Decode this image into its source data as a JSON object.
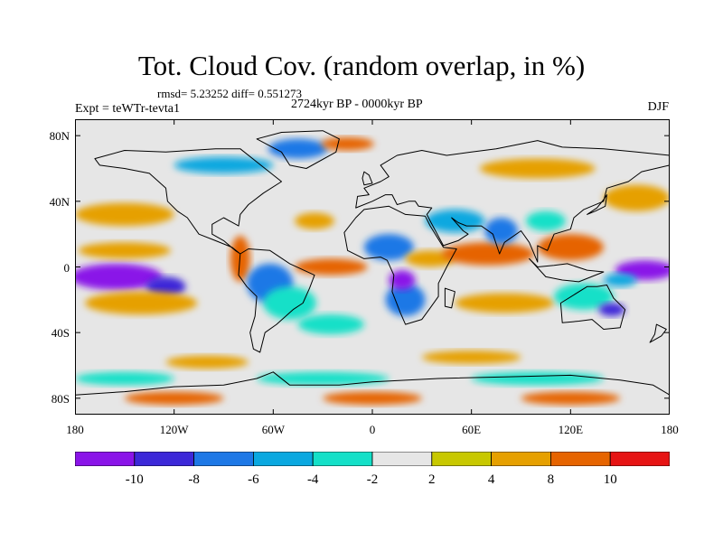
{
  "header": {
    "title": "Tot. Cloud Cov. (random overlap, in %)",
    "stats": "rmsd= 5.23252 diff= 0.551273",
    "experiment": "Expt = teWTr-tevta1",
    "period": "2724kyr BP - 0000kyr BP",
    "season": "DJF"
  },
  "axes": {
    "y_ticks": [
      "80N",
      "40N",
      "0",
      "40S",
      "80S"
    ],
    "y_values": [
      80,
      40,
      0,
      -40,
      -80
    ],
    "x_ticks": [
      "180",
      "120W",
      "60W",
      "0",
      "60E",
      "120E",
      "180"
    ],
    "x_values": [
      -180,
      -120,
      -60,
      0,
      60,
      120,
      180
    ]
  },
  "colorbar": {
    "labels": [
      "-10",
      "-8",
      "-6",
      "-4",
      "-2",
      "2",
      "4",
      "8",
      "10"
    ],
    "colors": [
      "#8a14e8",
      "#3c28d8",
      "#1e78e6",
      "#0aa8e0",
      "#14e0c8",
      "#e6e6e6",
      "#c8c800",
      "#e6a000",
      "#e66400",
      "#e61414"
    ]
  },
  "chart_data": {
    "type": "heatmap",
    "title": "Tot. Cloud Cov. (random overlap, in %)",
    "variable": "total cloud cover difference",
    "units": "%",
    "xlim": [
      -180,
      180
    ],
    "ylim": [
      -90,
      90
    ],
    "levels": [
      -10,
      -8,
      -6,
      -4,
      -2,
      2,
      4,
      8,
      10
    ],
    "rmsd": 5.23252,
    "diff": 0.551273
  },
  "features": [
    {
      "name": "pacific-equatorial-low",
      "lon": -155,
      "lat": -6,
      "rx": 28,
      "ry": 8,
      "level": -11
    },
    {
      "name": "pacific-low-2",
      "lon": -125,
      "lat": -12,
      "rx": 12,
      "ry": 6,
      "level": -9
    },
    {
      "name": "pacific-south-band",
      "lon": -140,
      "lat": -22,
      "rx": 34,
      "ry": 7,
      "level": 5
    },
    {
      "name": "pacific-north-band",
      "lon": -150,
      "lat": 10,
      "rx": 28,
      "ry": 5,
      "level": 6
    },
    {
      "name": "npacific-band",
      "lon": -150,
      "lat": 32,
      "rx": 30,
      "ry": 7,
      "level": 4
    },
    {
      "name": "americas-coast-red",
      "lon": -80,
      "lat": 5,
      "rx": 6,
      "ry": 14,
      "level": 9
    },
    {
      "name": "south-america-blue",
      "lon": -62,
      "lat": -10,
      "rx": 14,
      "ry": 12,
      "level": -7
    },
    {
      "name": "samerica-cyan",
      "lon": -50,
      "lat": -22,
      "rx": 16,
      "ry": 10,
      "level": -4
    },
    {
      "name": "satlantic-cyan",
      "lon": -25,
      "lat": -35,
      "rx": 20,
      "ry": 6,
      "level": -3
    },
    {
      "name": "atlantic-itcz",
      "lon": -25,
      "lat": 0,
      "rx": 22,
      "ry": 5,
      "level": 9
    },
    {
      "name": "natlantic-red",
      "lon": -35,
      "lat": 28,
      "rx": 12,
      "ry": 5,
      "level": 7
    },
    {
      "name": "greenland-mix",
      "lon": -45,
      "lat": 72,
      "rx": 18,
      "ry": 6,
      "level": -7
    },
    {
      "name": "arctic-red",
      "lon": -15,
      "lat": 75,
      "rx": 16,
      "ry": 4,
      "level": 8
    },
    {
      "name": "canada-band",
      "lon": -90,
      "lat": 62,
      "rx": 30,
      "ry": 5,
      "level": -5
    },
    {
      "name": "africa-north-blue",
      "lon": 10,
      "lat": 12,
      "rx": 15,
      "ry": 8,
      "level": -8
    },
    {
      "name": "africa-south-blue",
      "lon": 20,
      "lat": -20,
      "rx": 12,
      "ry": 10,
      "level": -8
    },
    {
      "name": "africa-east-purple",
      "lon": 18,
      "lat": -8,
      "rx": 8,
      "ry": 6,
      "level": -11
    },
    {
      "name": "africa-sahel-orange",
      "lon": 35,
      "lat": 5,
      "rx": 15,
      "ry": 5,
      "level": 7
    },
    {
      "name": "arabia-blue",
      "lon": 50,
      "lat": 28,
      "rx": 18,
      "ry": 7,
      "level": -5
    },
    {
      "name": "indian-ocean-red",
      "lon": 70,
      "lat": 8,
      "rx": 28,
      "ry": 7,
      "level": 9
    },
    {
      "name": "indian-ocean-south",
      "lon": 80,
      "lat": -22,
      "rx": 30,
      "ry": 6,
      "level": 6
    },
    {
      "name": "india-blue",
      "lon": 78,
      "lat": 22,
      "rx": 10,
      "ry": 8,
      "level": -7
    },
    {
      "name": "china-blue",
      "lon": 105,
      "lat": 28,
      "rx": 12,
      "ry": 6,
      "level": -4
    },
    {
      "name": "maritime-red",
      "lon": 120,
      "lat": 12,
      "rx": 20,
      "ry": 8,
      "level": 9
    },
    {
      "name": "australia-cyan",
      "lon": 128,
      "lat": -18,
      "rx": 18,
      "ry": 8,
      "level": -4
    },
    {
      "name": "australia-purple",
      "lon": 145,
      "lat": -26,
      "rx": 8,
      "ry": 4,
      "level": -9
    },
    {
      "name": "wpacific-purple",
      "lon": 165,
      "lat": -2,
      "rx": 18,
      "ry": 6,
      "level": -11
    },
    {
      "name": "wpacific-blue",
      "lon": 150,
      "lat": -8,
      "rx": 10,
      "ry": 4,
      "level": -6
    },
    {
      "name": "npacific-yellow",
      "lon": 160,
      "lat": 42,
      "rx": 20,
      "ry": 8,
      "level": 4
    },
    {
      "name": "nasia-yellow",
      "lon": 100,
      "lat": 60,
      "rx": 35,
      "ry": 6,
      "level": 4
    },
    {
      "name": "southern-ocean-1",
      "lon": -150,
      "lat": -68,
      "rx": 30,
      "ry": 4,
      "level": -4
    },
    {
      "name": "southern-ocean-2",
      "lon": -30,
      "lat": -68,
      "rx": 40,
      "ry": 4,
      "level": -4
    },
    {
      "name": "southern-ocean-3",
      "lon": 100,
      "lat": -68,
      "rx": 40,
      "ry": 4,
      "level": -3
    },
    {
      "name": "antarctic-red-1",
      "lon": -120,
      "lat": -80,
      "rx": 30,
      "ry": 4,
      "level": 9
    },
    {
      "name": "antarctic-red-2",
      "lon": 0,
      "lat": -80,
      "rx": 30,
      "ry": 4,
      "level": 8
    },
    {
      "name": "antarctic-red-3",
      "lon": 120,
      "lat": -80,
      "rx": 30,
      "ry": 4,
      "level": 9
    },
    {
      "name": "sp-yellow",
      "lon": -100,
      "lat": -58,
      "rx": 25,
      "ry": 4,
      "level": 4
    },
    {
      "name": "si-yellow",
      "lon": 60,
      "lat": -55,
      "rx": 30,
      "ry": 4,
      "level": 4
    }
  ],
  "continents": [
    {
      "name": "north-america",
      "coords": [
        [
          -168,
          66
        ],
        [
          -150,
          71
        ],
        [
          -125,
          70
        ],
        [
          -95,
          72
        ],
        [
          -80,
          72
        ],
        [
          -65,
          60
        ],
        [
          -55,
          52
        ],
        [
          -66,
          45
        ],
        [
          -75,
          38
        ],
        [
          -80,
          32
        ],
        [
          -81,
          25
        ],
        [
          -90,
          30
        ],
        [
          -97,
          26
        ],
        [
          -97,
          20
        ],
        [
          -90,
          16
        ],
        [
          -83,
          10
        ],
        [
          -80,
          8
        ],
        [
          -85,
          12
        ],
        [
          -95,
          16
        ],
        [
          -105,
          20
        ],
        [
          -112,
          30
        ],
        [
          -118,
          34
        ],
        [
          -124,
          40
        ],
        [
          -125,
          48
        ],
        [
          -135,
          57
        ],
        [
          -150,
          60
        ],
        [
          -165,
          62
        ]
      ]
    },
    {
      "name": "south-america",
      "coords": [
        [
          -80,
          8
        ],
        [
          -75,
          11
        ],
        [
          -62,
          10
        ],
        [
          -50,
          2
        ],
        [
          -35,
          -5
        ],
        [
          -38,
          -13
        ],
        [
          -42,
          -22
        ],
        [
          -48,
          -26
        ],
        [
          -58,
          -35
        ],
        [
          -65,
          -40
        ],
        [
          -68,
          -52
        ],
        [
          -72,
          -50
        ],
        [
          -74,
          -40
        ],
        [
          -71,
          -30
        ],
        [
          -70,
          -18
        ],
        [
          -76,
          -12
        ],
        [
          -81,
          -5
        ]
      ]
    },
    {
      "name": "greenland",
      "coords": [
        [
          -55,
          82
        ],
        [
          -30,
          83
        ],
        [
          -20,
          78
        ],
        [
          -22,
          70
        ],
        [
          -40,
          60
        ],
        [
          -50,
          62
        ],
        [
          -55,
          70
        ],
        [
          -70,
          78
        ]
      ]
    },
    {
      "name": "africa",
      "coords": [
        [
          -17,
          21
        ],
        [
          -10,
          30
        ],
        [
          -5,
          35
        ],
        [
          10,
          37
        ],
        [
          20,
          32
        ],
        [
          32,
          31
        ],
        [
          35,
          25
        ],
        [
          43,
          12
        ],
        [
          51,
          11
        ],
        [
          45,
          0
        ],
        [
          40,
          -10
        ],
        [
          40,
          -18
        ],
        [
          35,
          -25
        ],
        [
          30,
          -32
        ],
        [
          20,
          -35
        ],
        [
          17,
          -28
        ],
        [
          12,
          -15
        ],
        [
          13,
          -5
        ],
        [
          9,
          4
        ],
        [
          5,
          6
        ],
        [
          -5,
          5
        ],
        [
          -15,
          10
        ]
      ]
    },
    {
      "name": "eurasia",
      "coords": [
        [
          -10,
          36
        ],
        [
          -9,
          43
        ],
        [
          -2,
          44
        ],
        [
          -5,
          48
        ],
        [
          5,
          52
        ],
        [
          10,
          55
        ],
        [
          5,
          62
        ],
        [
          15,
          68
        ],
        [
          30,
          71
        ],
        [
          45,
          68
        ],
        [
          60,
          70
        ],
        [
          75,
          72
        ],
        [
          100,
          77
        ],
        [
          115,
          73
        ],
        [
          140,
          72
        ],
        [
          160,
          70
        ],
        [
          180,
          68
        ],
        [
          180,
          62
        ],
        [
          163,
          58
        ],
        [
          155,
          52
        ],
        [
          142,
          48
        ],
        [
          140,
          40
        ],
        [
          128,
          35
        ],
        [
          122,
          30
        ],
        [
          120,
          23
        ],
        [
          110,
          20
        ],
        [
          106,
          10
        ],
        [
          100,
          13
        ],
        [
          100,
          3
        ],
        [
          95,
          15
        ],
        [
          90,
          22
        ],
        [
          80,
          15
        ],
        [
          77,
          8
        ],
        [
          73,
          20
        ],
        [
          66,
          25
        ],
        [
          57,
          25
        ],
        [
          52,
          27
        ],
        [
          48,
          30
        ],
        [
          55,
          22
        ],
        [
          58,
          20
        ],
        [
          52,
          16
        ],
        [
          43,
          13
        ],
        [
          35,
          28
        ],
        [
          33,
          32
        ],
        [
          36,
          36
        ],
        [
          28,
          37
        ],
        [
          26,
          40
        ],
        [
          22,
          40
        ],
        [
          15,
          38
        ],
        [
          12,
          44
        ],
        [
          8,
          44
        ],
        [
          0,
          40
        ]
      ]
    },
    {
      "name": "australia",
      "coords": [
        [
          114,
          -22
        ],
        [
          122,
          -17
        ],
        [
          130,
          -12
        ],
        [
          136,
          -12
        ],
        [
          142,
          -11
        ],
        [
          146,
          -19
        ],
        [
          153,
          -26
        ],
        [
          150,
          -37
        ],
        [
          140,
          -38
        ],
        [
          133,
          -32
        ],
        [
          125,
          -33
        ],
        [
          115,
          -34
        ]
      ]
    },
    {
      "name": "antarctica",
      "coords": [
        [
          -180,
          -78
        ],
        [
          -150,
          -76
        ],
        [
          -120,
          -73
        ],
        [
          -90,
          -72
        ],
        [
          -70,
          -68
        ],
        [
          -60,
          -64
        ],
        [
          -50,
          -72
        ],
        [
          -20,
          -72
        ],
        [
          0,
          -70
        ],
        [
          40,
          -68
        ],
        [
          80,
          -67
        ],
        [
          120,
          -66
        ],
        [
          150,
          -69
        ],
        [
          170,
          -72
        ],
        [
          180,
          -78
        ],
        [
          180,
          -90
        ],
        [
          -180,
          -90
        ]
      ]
    },
    {
      "name": "madagascar",
      "coords": [
        [
          44,
          -13
        ],
        [
          50,
          -15
        ],
        [
          48,
          -25
        ],
        [
          44,
          -24
        ]
      ]
    },
    {
      "name": "uk",
      "coords": [
        [
          -5,
          50
        ],
        [
          0,
          51
        ],
        [
          -2,
          56
        ],
        [
          -5,
          58
        ],
        [
          -6,
          54
        ]
      ]
    },
    {
      "name": "japan",
      "coords": [
        [
          130,
          32
        ],
        [
          135,
          34
        ],
        [
          141,
          37
        ],
        [
          142,
          44
        ],
        [
          140,
          41
        ],
        [
          136,
          36
        ]
      ]
    },
    {
      "name": "indonesia",
      "coords": [
        [
          95,
          5
        ],
        [
          105,
          -6
        ],
        [
          115,
          -8
        ],
        [
          125,
          -9
        ],
        [
          135,
          -5
        ],
        [
          140,
          -3
        ],
        [
          130,
          -2
        ],
        [
          118,
          2
        ],
        [
          110,
          1
        ],
        [
          100,
          0
        ]
      ]
    },
    {
      "name": "new-zealand",
      "coords": [
        [
          172,
          -35
        ],
        [
          178,
          -38
        ],
        [
          175,
          -42
        ],
        [
          168,
          -46
        ],
        [
          171,
          -41
        ]
      ]
    }
  ]
}
